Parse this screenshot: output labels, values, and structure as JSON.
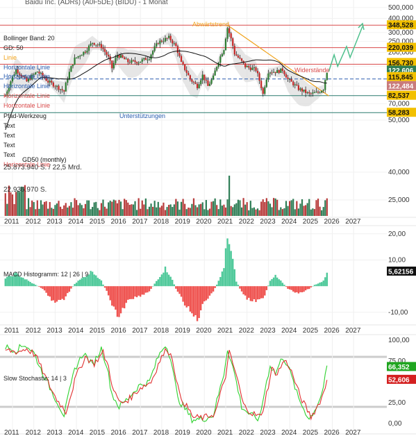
{
  "header": {
    "title": "Baidu Inc. (ADRs) (A0F5DE) (BIDU) - 1 Monat"
  },
  "colors": {
    "candle_up": "#2e7d32",
    "candle_down": "#c62828",
    "bollinger_band": "#dcdcdc",
    "resistance": "#d94a4a",
    "support": "#2a7a6e",
    "trend": "#f0a21a",
    "projection": "#4fc08d",
    "macd_pos": "#4fc99a",
    "macd_neg": "#ef5350",
    "stoch_k": "#2fd12f",
    "stoch_d": "#e03030",
    "vol_up": "#2e7d55",
    "vol_down": "#b83b3b",
    "label_blue": "#2a5db0"
  },
  "chart_data": [
    {
      "type": "candlestick",
      "name": "price",
      "x_ticks": [
        "2011",
        "2012",
        "2013",
        "2014",
        "2015",
        "2016",
        "2017",
        "2018",
        "2019",
        "2020",
        "2021",
        "2022",
        "2023",
        "2024",
        "2025",
        "2026",
        "2027"
      ],
      "y_ticks": [
        "500,000",
        "400,000",
        "300,000",
        "250,000",
        "200,000",
        "150,000",
        "100,000",
        "70,000",
        "50,000",
        "40,000",
        "25,000"
      ],
      "y_scale": "log",
      "ylim": [
        18,
        520
      ],
      "legend": [
        "Bollinger Band: 20",
        "GD: 50",
        "Linie",
        "Horizontale Linie",
        "Horizontale Linie",
        "Horizontale Linie",
        "Horizontale Linie",
        "Horizontale Linie",
        "Pfad-Werkzeug",
        "Text",
        "Text",
        "Text",
        "Text",
        "Horizontale Linie"
      ],
      "annotations": {
        "trend": "Abwärtstrend",
        "resistance": "Widerstände",
        "support": "Unterstützungen",
        "ma": "GD50 (monthly)"
      },
      "horizontal_lines": [
        348.528,
        220.039,
        156.73,
        115.845,
        82.537,
        58.283
      ],
      "price_labels": [
        "348,528",
        "220,039",
        "156,730",
        "122,606",
        "115,845",
        "122,484",
        "82,537",
        "58,283"
      ],
      "anchors": [
        [
          "2010-09",
          82
        ],
        [
          "2011-03",
          140
        ],
        [
          "2011-09",
          110
        ],
        [
          "2012-03",
          135
        ],
        [
          "2012-09",
          110
        ],
        [
          "2013-06",
          90
        ],
        [
          "2013-12",
          175
        ],
        [
          "2014-06",
          205
        ],
        [
          "2014-10",
          245
        ],
        [
          "2015-03",
          225
        ],
        [
          "2015-07",
          180
        ],
        [
          "2015-09",
          145
        ],
        [
          "2015-12",
          190
        ],
        [
          "2016-06",
          165
        ],
        [
          "2016-12",
          165
        ],
        [
          "2017-06",
          180
        ],
        [
          "2017-11",
          245
        ],
        [
          "2018-05",
          270
        ],
        [
          "2018-09",
          225
        ],
        [
          "2018-12",
          160
        ],
        [
          "2019-05",
          115
        ],
        [
          "2019-09",
          100
        ],
        [
          "2019-12",
          125
        ],
        [
          "2020-03",
          100
        ],
        [
          "2020-06",
          120
        ],
        [
          "2020-12",
          215
        ],
        [
          "2021-02",
          330
        ],
        [
          "2021-06",
          195
        ],
        [
          "2021-12",
          150
        ],
        [
          "2022-06",
          140
        ],
        [
          "2022-10",
          85
        ],
        [
          "2023-01",
          135
        ],
        [
          "2023-06",
          135
        ],
        [
          "2023-09",
          140
        ],
        [
          "2023-12",
          115
        ],
        [
          "2024-06",
          95
        ],
        [
          "2024-12",
          85
        ],
        [
          "2025-05",
          88
        ],
        [
          "2025-08",
          95
        ],
        [
          "2025-10",
          135
        ]
      ]
    },
    {
      "type": "bar",
      "name": "volume",
      "y_ticks": [
        "40,000",
        "25,000"
      ],
      "labels": [
        "25.873.940 S. / 22,5 Mrd.",
        "22.936.970 S."
      ]
    },
    {
      "type": "bar",
      "name": "MACD Histogramm: 12 | 26 | 9",
      "y_ticks": [
        "20,00",
        "10,00",
        "-10,00"
      ],
      "ylim": [
        -14,
        21
      ],
      "last_value": "5,62156",
      "anchors": [
        [
          "2010-09",
          3
        ],
        [
          "2011-03",
          5
        ],
        [
          "2011-10",
          2
        ],
        [
          "2012-06",
          -1
        ],
        [
          "2012-12",
          -6
        ],
        [
          "2013-06",
          -5
        ],
        [
          "2013-12",
          1
        ],
        [
          "2014-06",
          4
        ],
        [
          "2014-10",
          6
        ],
        [
          "2015-03",
          2
        ],
        [
          "2015-06",
          -2
        ],
        [
          "2015-09",
          -8
        ],
        [
          "2016-01",
          -12
        ],
        [
          "2016-06",
          -5
        ],
        [
          "2016-12",
          -4
        ],
        [
          "2017-06",
          -2
        ],
        [
          "2017-11",
          3
        ],
        [
          "2018-03",
          7
        ],
        [
          "2018-06",
          4
        ],
        [
          "2018-09",
          -1
        ],
        [
          "2019-03",
          -8
        ],
        [
          "2019-06",
          -11
        ],
        [
          "2019-09",
          -13
        ],
        [
          "2020-01",
          -6
        ],
        [
          "2020-06",
          -2
        ],
        [
          "2020-09",
          2
        ],
        [
          "2020-12",
          7
        ],
        [
          "2021-02",
          20
        ],
        [
          "2021-05",
          10
        ],
        [
          "2021-07",
          2
        ],
        [
          "2021-09",
          -1
        ],
        [
          "2022-01",
          -5
        ],
        [
          "2022-06",
          -6
        ],
        [
          "2022-10",
          -5
        ],
        [
          "2023-02",
          2
        ],
        [
          "2023-05",
          4
        ],
        [
          "2023-08",
          2
        ],
        [
          "2023-12",
          -1
        ],
        [
          "2024-06",
          -3
        ],
        [
          "2024-12",
          -1
        ],
        [
          "2025-03",
          0.5
        ],
        [
          "2025-08",
          2
        ],
        [
          "2025-10",
          5.6
        ]
      ]
    },
    {
      "type": "line",
      "name": "Slow Stochastic: 14 | 3",
      "y_ticks": [
        "100,00",
        "75,00",
        "25,00",
        "0,00"
      ],
      "ylim": [
        0,
        100
      ],
      "bands": [
        80,
        20
      ],
      "values": [
        "66,352",
        "52,606"
      ],
      "series": [
        {
          "name": "%K",
          "anchors": [
            [
              "2010-09",
              92
            ],
            [
              "2011-03",
              88
            ],
            [
              "2011-08",
              95
            ],
            [
              "2012-01",
              85
            ],
            [
              "2012-06",
              60
            ],
            [
              "2012-12",
              35
            ],
            [
              "2013-06",
              10
            ],
            [
              "2013-12",
              65
            ],
            [
              "2014-05",
              85
            ],
            [
              "2014-10",
              70
            ],
            [
              "2015-03",
              90
            ],
            [
              "2015-06",
              70
            ],
            [
              "2015-09",
              35
            ],
            [
              "2016-01",
              20
            ],
            [
              "2016-06",
              30
            ],
            [
              "2016-12",
              45
            ],
            [
              "2017-06",
              50
            ],
            [
              "2017-11",
              80
            ],
            [
              "2018-03",
              95
            ],
            [
              "2018-06",
              80
            ],
            [
              "2018-10",
              30
            ],
            [
              "2019-03",
              15
            ],
            [
              "2019-06",
              5
            ],
            [
              "2019-12",
              5
            ],
            [
              "2020-06",
              10
            ],
            [
              "2020-12",
              60
            ],
            [
              "2021-02",
              90
            ],
            [
              "2021-06",
              60
            ],
            [
              "2021-10",
              20
            ],
            [
              "2022-03",
              10
            ],
            [
              "2022-08",
              5
            ],
            [
              "2022-11",
              40
            ],
            [
              "2023-02",
              70
            ],
            [
              "2023-05",
              60
            ],
            [
              "2023-09",
              80
            ],
            [
              "2023-12",
              70
            ],
            [
              "2024-06",
              30
            ],
            [
              "2024-12",
              5
            ],
            [
              "2025-04",
              20
            ],
            [
              "2025-07",
              35
            ],
            [
              "2025-10",
              66
            ]
          ]
        },
        {
          "name": "%D",
          "anchors": [
            [
              "2010-09",
              88
            ],
            [
              "2011-04",
              86
            ],
            [
              "2011-09",
              90
            ],
            [
              "2012-02",
              82
            ],
            [
              "2012-07",
              58
            ],
            [
              "2013-01",
              32
            ],
            [
              "2013-07",
              14
            ],
            [
              "2014-01",
              58
            ],
            [
              "2014-06",
              80
            ],
            [
              "2014-11",
              72
            ],
            [
              "2015-04",
              85
            ],
            [
              "2015-07",
              68
            ],
            [
              "2015-10",
              38
            ],
            [
              "2016-02",
              24
            ],
            [
              "2016-07",
              30
            ],
            [
              "2017-01",
              43
            ],
            [
              "2017-07",
              50
            ],
            [
              "2017-12",
              76
            ],
            [
              "2018-04",
              90
            ],
            [
              "2018-07",
              78
            ],
            [
              "2018-11",
              34
            ],
            [
              "2019-04",
              17
            ],
            [
              "2019-07",
              7
            ],
            [
              "2020-01",
              7
            ],
            [
              "2020-07",
              12
            ],
            [
              "2021-01",
              58
            ],
            [
              "2021-03",
              85
            ],
            [
              "2021-07",
              58
            ],
            [
              "2021-11",
              22
            ],
            [
              "2022-04",
              12
            ],
            [
              "2022-09",
              8
            ],
            [
              "2022-12",
              36
            ],
            [
              "2023-03",
              65
            ],
            [
              "2023-06",
              60
            ],
            [
              "2023-10",
              76
            ],
            [
              "2024-01",
              68
            ],
            [
              "2024-07",
              32
            ],
            [
              "2025-01",
              8
            ],
            [
              "2025-05",
              22
            ],
            [
              "2025-08",
              36
            ],
            [
              "2025-10",
              52.6
            ]
          ]
        }
      ]
    }
  ]
}
